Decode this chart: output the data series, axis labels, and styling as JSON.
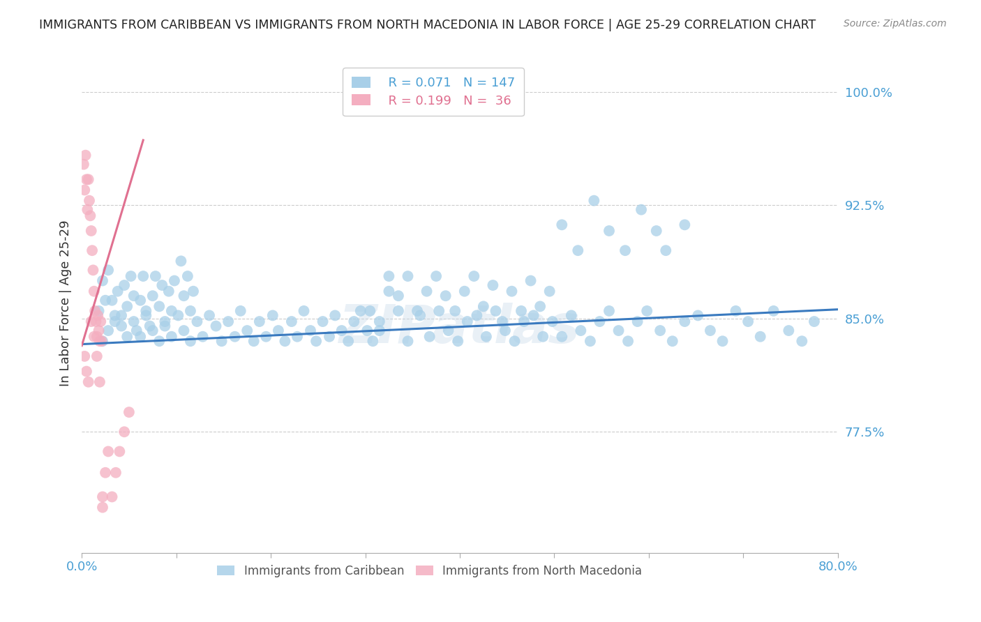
{
  "title": "IMMIGRANTS FROM CARIBBEAN VS IMMIGRANTS FROM NORTH MACEDONIA IN LABOR FORCE | AGE 25-29 CORRELATION CHART",
  "source": "Source: ZipAtlas.com",
  "ylabel": "In Labor Force | Age 25-29",
  "caribbean_color": "#a8cfe8",
  "macedonia_color": "#f4aec0",
  "caribbean_trend_color": "#3a7abf",
  "macedonia_trend_color": "#e07090",
  "watermark": "ZIPatlas",
  "watermark_color": "#c8daea",
  "xlim": [
    0.0,
    0.8
  ],
  "ylim": [
    0.695,
    1.025
  ],
  "yticks": [
    0.775,
    0.85,
    0.925,
    1.0
  ],
  "xticks": [
    0.0,
    0.1,
    0.2,
    0.3,
    0.4,
    0.5,
    0.6,
    0.7,
    0.8
  ],
  "caribbean_trend_x": [
    0.0,
    0.8
  ],
  "caribbean_trend_y": [
    0.833,
    0.856
  ],
  "macedonia_trend_x": [
    0.0,
    0.065
  ],
  "macedonia_trend_y": [
    0.832,
    0.968
  ],
  "caribbean_x": [
    0.018,
    0.022,
    0.025,
    0.028,
    0.032,
    0.035,
    0.038,
    0.042,
    0.045,
    0.048,
    0.052,
    0.055,
    0.058,
    0.062,
    0.065,
    0.068,
    0.072,
    0.075,
    0.078,
    0.082,
    0.085,
    0.088,
    0.092,
    0.095,
    0.098,
    0.105,
    0.108,
    0.112,
    0.115,
    0.118,
    0.022,
    0.028,
    0.035,
    0.042,
    0.048,
    0.055,
    0.062,
    0.068,
    0.075,
    0.082,
    0.088,
    0.095,
    0.102,
    0.108,
    0.115,
    0.122,
    0.128,
    0.135,
    0.142,
    0.148,
    0.155,
    0.162,
    0.168,
    0.175,
    0.182,
    0.188,
    0.195,
    0.202,
    0.208,
    0.215,
    0.222,
    0.228,
    0.235,
    0.242,
    0.248,
    0.255,
    0.262,
    0.268,
    0.275,
    0.282,
    0.288,
    0.295,
    0.302,
    0.308,
    0.315,
    0.325,
    0.335,
    0.345,
    0.355,
    0.365,
    0.375,
    0.385,
    0.395,
    0.405,
    0.415,
    0.425,
    0.435,
    0.445,
    0.455,
    0.465,
    0.475,
    0.485,
    0.495,
    0.305,
    0.315,
    0.325,
    0.335,
    0.345,
    0.358,
    0.368,
    0.378,
    0.388,
    0.398,
    0.408,
    0.418,
    0.428,
    0.438,
    0.448,
    0.458,
    0.468,
    0.478,
    0.488,
    0.498,
    0.508,
    0.518,
    0.528,
    0.538,
    0.548,
    0.558,
    0.568,
    0.578,
    0.588,
    0.598,
    0.612,
    0.625,
    0.638,
    0.652,
    0.665,
    0.678,
    0.692,
    0.705,
    0.718,
    0.732,
    0.748,
    0.762,
    0.775,
    0.508,
    0.525,
    0.542,
    0.558,
    0.575,
    0.592,
    0.608,
    0.618,
    0.638
  ],
  "caribbean_y": [
    0.855,
    0.875,
    0.862,
    0.882,
    0.862,
    0.848,
    0.868,
    0.852,
    0.872,
    0.858,
    0.878,
    0.865,
    0.842,
    0.862,
    0.878,
    0.855,
    0.845,
    0.865,
    0.878,
    0.858,
    0.872,
    0.848,
    0.868,
    0.855,
    0.875,
    0.888,
    0.865,
    0.878,
    0.855,
    0.868,
    0.835,
    0.842,
    0.852,
    0.845,
    0.838,
    0.848,
    0.838,
    0.852,
    0.842,
    0.835,
    0.845,
    0.838,
    0.852,
    0.842,
    0.835,
    0.848,
    0.838,
    0.852,
    0.845,
    0.835,
    0.848,
    0.838,
    0.855,
    0.842,
    0.835,
    0.848,
    0.838,
    0.852,
    0.842,
    0.835,
    0.848,
    0.838,
    0.855,
    0.842,
    0.835,
    0.848,
    0.838,
    0.852,
    0.842,
    0.835,
    0.848,
    0.855,
    0.842,
    0.835,
    0.848,
    0.878,
    0.865,
    0.878,
    0.855,
    0.868,
    0.878,
    0.865,
    0.855,
    0.868,
    0.878,
    0.858,
    0.872,
    0.848,
    0.868,
    0.855,
    0.875,
    0.858,
    0.868,
    0.855,
    0.842,
    0.868,
    0.855,
    0.835,
    0.852,
    0.838,
    0.855,
    0.842,
    0.835,
    0.848,
    0.852,
    0.838,
    0.855,
    0.842,
    0.835,
    0.848,
    0.852,
    0.838,
    0.848,
    0.838,
    0.852,
    0.842,
    0.835,
    0.848,
    0.855,
    0.842,
    0.835,
    0.848,
    0.855,
    0.842,
    0.835,
    0.848,
    0.852,
    0.842,
    0.835,
    0.855,
    0.848,
    0.838,
    0.855,
    0.842,
    0.835,
    0.848,
    0.912,
    0.895,
    0.928,
    0.908,
    0.895,
    0.922,
    0.908,
    0.895,
    0.912
  ],
  "macedonia_x": [
    0.002,
    0.003,
    0.004,
    0.005,
    0.006,
    0.007,
    0.008,
    0.009,
    0.01,
    0.011,
    0.012,
    0.013,
    0.014,
    0.015,
    0.016,
    0.017,
    0.018,
    0.019,
    0.02,
    0.021,
    0.003,
    0.005,
    0.007,
    0.01,
    0.013,
    0.016,
    0.019,
    0.022,
    0.025,
    0.028,
    0.032,
    0.036,
    0.04,
    0.045,
    0.05,
    0.022
  ],
  "macedonia_y": [
    0.952,
    0.935,
    0.958,
    0.942,
    0.922,
    0.942,
    0.928,
    0.918,
    0.908,
    0.895,
    0.882,
    0.868,
    0.855,
    0.848,
    0.838,
    0.852,
    0.842,
    0.835,
    0.848,
    0.835,
    0.825,
    0.815,
    0.808,
    0.848,
    0.838,
    0.825,
    0.808,
    0.732,
    0.748,
    0.762,
    0.732,
    0.748,
    0.762,
    0.775,
    0.788,
    0.725
  ]
}
